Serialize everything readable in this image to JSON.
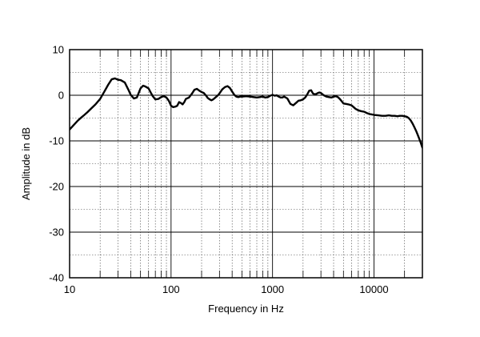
{
  "chart_data": {
    "type": "line",
    "xlabel": "Frequency  in Hz",
    "ylabel": "Amplitude in dB",
    "x_scale": "log",
    "xlim": [
      10,
      30000
    ],
    "ylim": [
      -40,
      10
    ],
    "grid": true,
    "x_ticks": [
      {
        "value": 10,
        "label": "10"
      },
      {
        "value": 100,
        "label": "100"
      },
      {
        "value": 1000,
        "label": "1000"
      },
      {
        "value": 10000,
        "label": "10000"
      }
    ],
    "y_ticks": [
      {
        "value": 10,
        "label": "10"
      },
      {
        "value": 0,
        "label": "0"
      },
      {
        "value": -10,
        "label": "-10"
      },
      {
        "value": -20,
        "label": "-20"
      },
      {
        "value": -30,
        "label": "-30"
      },
      {
        "value": -40,
        "label": "-40"
      }
    ],
    "series": [
      {
        "x": [
          10,
          11,
          12,
          13,
          14,
          15,
          16,
          18,
          20,
          22,
          24,
          26,
          28,
          30,
          32,
          35,
          38,
          40,
          43,
          46,
          50,
          53,
          56,
          60,
          63,
          66,
          70,
          75,
          80,
          85,
          90,
          95,
          100,
          105,
          110,
          115,
          120,
          125,
          130,
          135,
          140,
          150,
          160,
          170,
          180,
          190,
          200,
          210,
          220,
          230,
          240,
          250,
          260,
          270,
          280,
          290,
          300,
          320,
          340,
          360,
          380,
          400,
          420,
          440,
          460,
          480,
          500,
          550,
          600,
          650,
          700,
          750,
          800,
          850,
          900,
          950,
          1000,
          1050,
          1100,
          1150,
          1200,
          1250,
          1300,
          1400,
          1500,
          1600,
          1700,
          1800,
          1900,
          2000,
          2100,
          2200,
          2300,
          2400,
          2500,
          2600,
          2700,
          2800,
          2900,
          3000,
          3200,
          3400,
          3600,
          3800,
          4000,
          4200,
          4400,
          4600,
          4800,
          5000,
          5300,
          5600,
          6000,
          6300,
          6600,
          7000,
          7500,
          8000,
          8500,
          9000,
          9500,
          10000,
          11000,
          12000,
          13000,
          14000,
          15000,
          16000,
          17000,
          18000,
          19000,
          20000,
          21000,
          22000,
          23000,
          24000,
          25000,
          26000,
          27000,
          28000,
          29000,
          30000
        ],
        "y": [
          -7.5,
          -6.5,
          -5.6,
          -4.9,
          -4.3,
          -3.7,
          -3.1,
          -2.0,
          -0.8,
          0.8,
          2.3,
          3.5,
          3.7,
          3.4,
          3.3,
          2.8,
          1.2,
          0.1,
          -0.7,
          -0.5,
          1.5,
          2.1,
          1.9,
          1.5,
          0.6,
          -0.2,
          -0.9,
          -0.8,
          -0.4,
          -0.2,
          -0.5,
          -1.2,
          -2.3,
          -2.6,
          -2.5,
          -2.3,
          -1.5,
          -1.7,
          -2.0,
          -1.5,
          -0.8,
          -0.5,
          0.3,
          1.2,
          1.4,
          1.0,
          0.7,
          0.5,
          0.0,
          -0.6,
          -0.9,
          -1.1,
          -0.9,
          -0.6,
          -0.3,
          0.0,
          0.4,
          1.3,
          1.8,
          2.0,
          1.6,
          0.8,
          0.1,
          -0.3,
          -0.4,
          -0.3,
          -0.3,
          -0.2,
          -0.3,
          -0.4,
          -0.5,
          -0.4,
          -0.3,
          -0.5,
          -0.4,
          -0.1,
          0.1,
          -0.1,
          0.0,
          -0.3,
          -0.5,
          -0.5,
          -0.3,
          -0.7,
          -1.9,
          -2.2,
          -1.7,
          -1.2,
          -1.1,
          -0.9,
          -0.5,
          0.2,
          1.0,
          1.1,
          0.4,
          0.2,
          0.3,
          0.5,
          0.6,
          0.5,
          0.0,
          -0.3,
          -0.4,
          -0.5,
          -0.3,
          -0.2,
          -0.4,
          -0.8,
          -1.3,
          -1.8,
          -1.9,
          -2.0,
          -2.2,
          -2.6,
          -3.0,
          -3.3,
          -3.5,
          -3.6,
          -3.9,
          -4.1,
          -4.2,
          -4.3,
          -4.4,
          -4.5,
          -4.5,
          -4.4,
          -4.5,
          -4.5,
          -4.6,
          -4.5,
          -4.5,
          -4.6,
          -4.7,
          -5.0,
          -5.5,
          -6.2,
          -7.0,
          -7.8,
          -8.7,
          -9.6,
          -10.5,
          -11.5
        ]
      }
    ]
  }
}
